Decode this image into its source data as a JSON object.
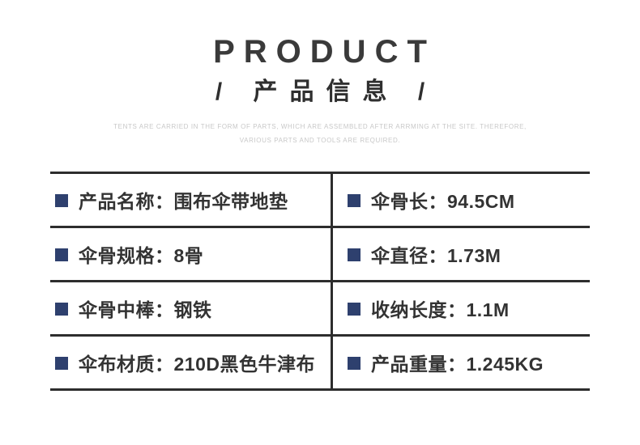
{
  "header": {
    "title": "PRODUCT",
    "subtitle": "/ 产品信息 /",
    "description_lines": [
      "TENTS ARE CARRIED IN THE FORM OF PARTS, WHICH ARE ASSEMBLED AFTER ARRMING AT THE SITE. THEREFORE,",
      "VARIOUS PARTS AND TOOLS ARE REQUIRED."
    ]
  },
  "colors": {
    "accent_square": "#2e406e",
    "table_line": "#2d2d2d",
    "title_text": "#3a3a3a",
    "body_text": "#333333",
    "muted_text": "#c8c8c8"
  },
  "spec_table": {
    "rows": [
      {
        "left": "产品名称：围布伞带地垫",
        "right": "伞骨长：94.5CM"
      },
      {
        "left": "伞骨规格：8骨",
        "right": "伞直径：1.73M"
      },
      {
        "left": "伞骨中棒：钢铁",
        "right": "收纳长度：1.1M"
      },
      {
        "left": "伞布材质：210D黑色牛津布",
        "right": "产品重量：1.245KG"
      }
    ]
  }
}
